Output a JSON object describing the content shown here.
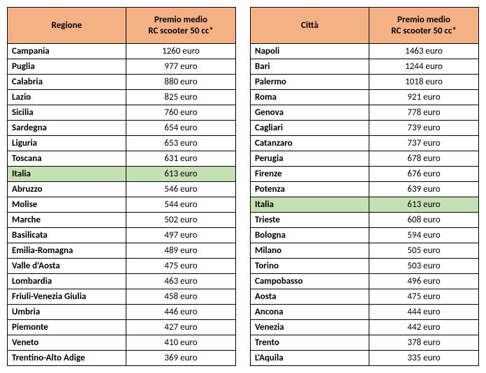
{
  "colors": {
    "header_bg": "#f4b183",
    "highlight_bg": "#c5e0b3",
    "border": "#000000",
    "text": "#000000",
    "background": "#ffffff"
  },
  "tables": [
    {
      "headers": [
        "Regione",
        "Premio medio\nRC scooter 50 cc*"
      ],
      "rows": [
        {
          "name": "Campania",
          "value": "1260 euro",
          "highlight": false
        },
        {
          "name": "Puglia",
          "value": "977 euro",
          "highlight": false
        },
        {
          "name": "Calabria",
          "value": "880 euro",
          "highlight": false
        },
        {
          "name": "Lazio",
          "value": "825 euro",
          "highlight": false
        },
        {
          "name": "Sicilia",
          "value": "760 euro",
          "highlight": false
        },
        {
          "name": "Sardegna",
          "value": "654 euro",
          "highlight": false
        },
        {
          "name": "Liguria",
          "value": "653 euro",
          "highlight": false
        },
        {
          "name": "Toscana",
          "value": "631 euro",
          "highlight": false
        },
        {
          "name": "Italia",
          "value": "613 euro",
          "highlight": true
        },
        {
          "name": "Abruzzo",
          "value": "546 euro",
          "highlight": false
        },
        {
          "name": "Molise",
          "value": "544 euro",
          "highlight": false
        },
        {
          "name": "Marche",
          "value": "502 euro",
          "highlight": false
        },
        {
          "name": "Basilicata",
          "value": "497 euro",
          "highlight": false
        },
        {
          "name": "Emilia-Romagna",
          "value": "489 euro",
          "highlight": false
        },
        {
          "name": "Valle d'Aosta",
          "value": "475 euro",
          "highlight": false
        },
        {
          "name": "Lombardia",
          "value": "463 euro",
          "highlight": false
        },
        {
          "name": "Friuli-Venezia Giulia",
          "value": "458 euro",
          "highlight": false
        },
        {
          "name": "Umbria",
          "value": "446 euro",
          "highlight": false
        },
        {
          "name": "Piemonte",
          "value": "427 euro",
          "highlight": false
        },
        {
          "name": "Veneto",
          "value": "410 euro",
          "highlight": false
        },
        {
          "name": "Trentino-Alto Adige",
          "value": "369 euro",
          "highlight": false
        }
      ]
    },
    {
      "headers": [
        "Città",
        "Premio medio\nRC scooter 50 cc*"
      ],
      "rows": [
        {
          "name": "Napoli",
          "value": "1463 euro",
          "highlight": false
        },
        {
          "name": "Bari",
          "value": "1244 euro",
          "highlight": false
        },
        {
          "name": "Palermo",
          "value": "1018 euro",
          "highlight": false
        },
        {
          "name": "Roma",
          "value": "921 euro",
          "highlight": false
        },
        {
          "name": "Genova",
          "value": "778 euro",
          "highlight": false
        },
        {
          "name": "Cagliari",
          "value": "739 euro",
          "highlight": false
        },
        {
          "name": "Catanzaro",
          "value": "737 euro",
          "highlight": false
        },
        {
          "name": "Perugia",
          "value": "678 euro",
          "highlight": false
        },
        {
          "name": "Firenze",
          "value": "676 euro",
          "highlight": false
        },
        {
          "name": "Potenza",
          "value": "639 euro",
          "highlight": false
        },
        {
          "name": "Italia",
          "value": "613 euro",
          "highlight": true
        },
        {
          "name": "Trieste",
          "value": "608 euro",
          "highlight": false
        },
        {
          "name": "Bologna",
          "value": "594 euro",
          "highlight": false
        },
        {
          "name": "Milano",
          "value": "505 euro",
          "highlight": false
        },
        {
          "name": "Torino",
          "value": "503 euro",
          "highlight": false
        },
        {
          "name": "Campobasso",
          "value": "496 euro",
          "highlight": false
        },
        {
          "name": "Aosta",
          "value": "475 euro",
          "highlight": false
        },
        {
          "name": "Ancona",
          "value": "444 euro",
          "highlight": false
        },
        {
          "name": "Venezia",
          "value": "442 euro",
          "highlight": false
        },
        {
          "name": "Trento",
          "value": "378 euro",
          "highlight": false
        },
        {
          "name": "L'Aquila",
          "value": "335 euro",
          "highlight": false
        }
      ]
    }
  ]
}
